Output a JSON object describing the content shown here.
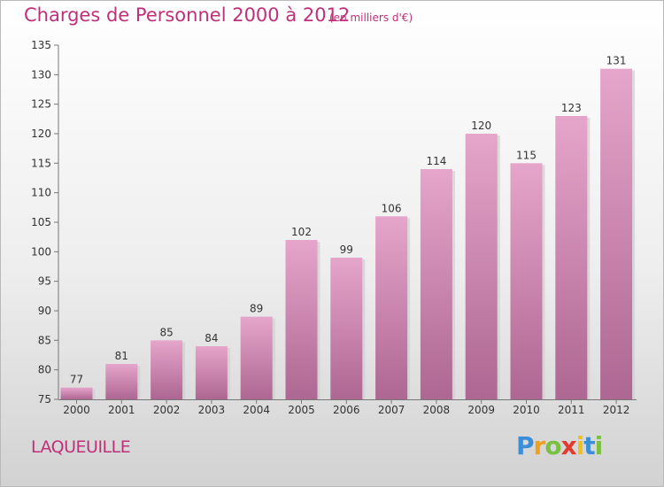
{
  "chart_data": {
    "type": "bar",
    "title": "Charges de Personnel 2000 à 2012",
    "subtitle": "(en milliers d'€)",
    "xlabel": "",
    "ylabel": "",
    "categories": [
      "2000",
      "2001",
      "2002",
      "2003",
      "2004",
      "2005",
      "2006",
      "2007",
      "2008",
      "2009",
      "2010",
      "2011",
      "2012"
    ],
    "values": [
      77,
      81,
      85,
      84,
      89,
      102,
      99,
      106,
      114,
      120,
      115,
      123,
      131
    ],
    "ylim": [
      75,
      135
    ],
    "yticks": [
      75,
      80,
      85,
      90,
      95,
      100,
      105,
      110,
      115,
      120,
      125,
      130,
      135
    ],
    "grid": false,
    "bar_color": "#d98fb8"
  },
  "location": "LAQUEUILLE",
  "brand": {
    "letters": [
      "P",
      "r",
      "o",
      "x",
      "i",
      "t",
      "i"
    ],
    "colors": [
      "#3a8fd8",
      "#f0a020",
      "#7ac043",
      "#e23b2e",
      "#f0c020",
      "#3a8fd8",
      "#7ac043"
    ]
  }
}
